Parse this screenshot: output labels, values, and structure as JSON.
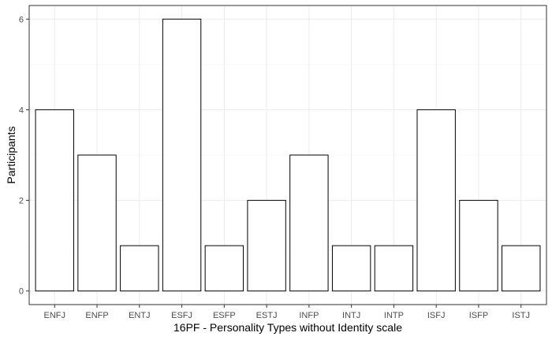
{
  "chart_data": {
    "type": "bar",
    "categories": [
      "ENFJ",
      "ENFP",
      "ENTJ",
      "ESFJ",
      "ESFP",
      "ESTJ",
      "INFP",
      "INTJ",
      "INTP",
      "ISFJ",
      "ISFP",
      "ISTJ"
    ],
    "values": [
      4,
      3,
      1,
      6,
      1,
      2,
      3,
      1,
      1,
      4,
      2,
      1
    ],
    "xlabel": "16PF - Personality Types without Identity scale",
    "ylabel": "Participants",
    "ylim": [
      -0.3,
      6.3
    ],
    "y_ticks": [
      0,
      2,
      4,
      6
    ],
    "y_minor_ticks": [
      1,
      3,
      5
    ],
    "grid": true,
    "legend": "none",
    "colors": {
      "bar_fill": "#ffffff",
      "bar_stroke": "#000000",
      "grid_major": "#ebebeb",
      "grid_minor": "#f5f5f5",
      "panel_border": "#333333",
      "tick_text": "#4d4d4d"
    }
  }
}
